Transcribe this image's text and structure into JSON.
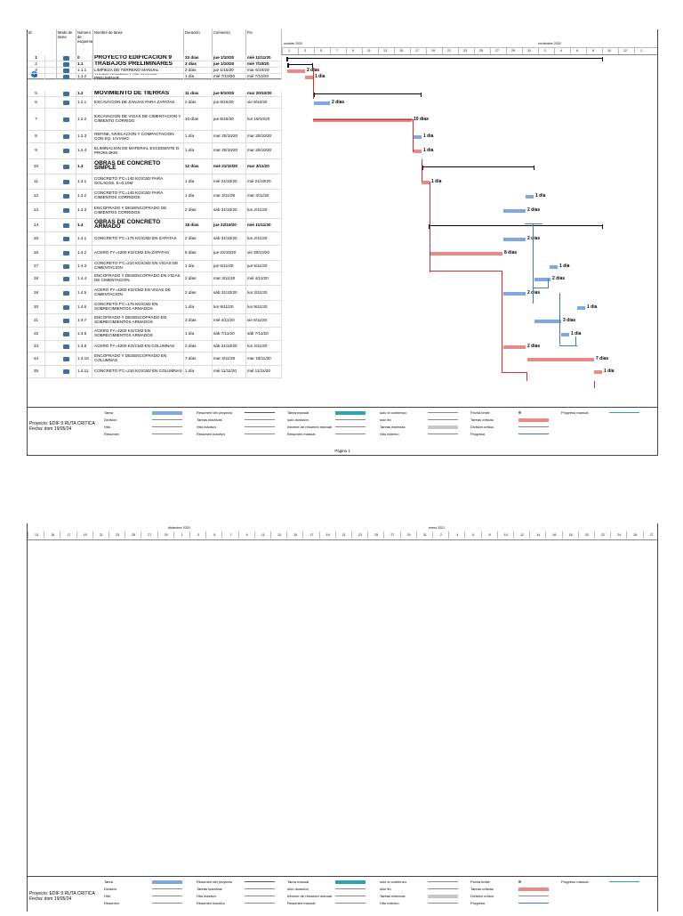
{
  "headers": {
    "id": "Id",
    "mode": "Modo de tarea",
    "num": "Número de esquema",
    "name": "Nombre de tarea",
    "dur": "Duración",
    "start": "Comienzo",
    "end": "Fin"
  },
  "timeline1": {
    "month1": "octubre 2020",
    "month2": "noviembre 2020",
    "days": [
      "1",
      "3",
      "5",
      "7",
      "9",
      "11",
      "13",
      "15",
      "17",
      "19",
      "21",
      "23",
      "25",
      "27",
      "29",
      "31",
      "2",
      "4",
      "6",
      "8",
      "10",
      "12",
      "1"
    ]
  },
  "timeline2": {
    "month1": "diciembre 2020",
    "month2": "enero 2021",
    "days": [
      "13",
      "15",
      "17",
      "19",
      "21",
      "23",
      "25",
      "27",
      "29",
      "1",
      "3",
      "5",
      "7",
      "9",
      "11",
      "13",
      "15",
      "17",
      "19",
      "21",
      "23",
      "25",
      "27",
      "29",
      "31",
      "2",
      "4",
      "6",
      "8",
      "10",
      "12",
      "14",
      "16",
      "18",
      "20",
      "22",
      "24",
      "26",
      "27"
    ]
  },
  "rows": [
    {
      "id": "1",
      "num": "0",
      "name": "PROYECTO EDIFICACION 9",
      "dur": "33 días",
      "start": "jue 1/10/20",
      "end": "mié 11/11/20",
      "kind": "proj"
    },
    {
      "id": "2",
      "num": "1.1",
      "name": "TRABAJOS PRELIMINARES",
      "dur": "3 días",
      "start": "jue 1/10/20",
      "end": "mié 7/10/20",
      "kind": "sum"
    },
    {
      "id": "3",
      "num": "1.1.1",
      "name": "LIMPIEZA DE TERRENO MANUAL",
      "dur": "2 días",
      "start": "jue 1/10/20",
      "end": "mar 6/10/20",
      "kind": "task"
    },
    {
      "id": "4",
      "num": "1.1.2",
      "name": "TRAZO, NIVELES Y REPLANTEO PRELIMINAR",
      "dur": "1 día",
      "start": "mié 7/10/20",
      "end": "mié 7/10/20",
      "kind": "task"
    },
    {
      "id": "5",
      "num": "1.2",
      "name": "MOVIMIENTO DE TIERRAS",
      "dur": "11 días",
      "start": "jue 8/10/20",
      "end": "mar 20/10/20",
      "kind": "sum"
    },
    {
      "id": "6",
      "num": "1.2.1",
      "name": "EXCAVACION DE ZANJAS PARA ZAPATAS",
      "dur": "2 días",
      "start": "jue 8/10/20",
      "end": "vie 9/10/20",
      "kind": "task"
    },
    {
      "id": "7",
      "num": "1.2.2",
      "name": "EXCAVACION DE VIGAS DE CIMENTACION Y CIMIENTO CORRIDO",
      "dur": "10 días",
      "start": "jue 8/10/20",
      "end": "lun 19/10/20",
      "kind": "task"
    },
    {
      "id": "8",
      "num": "1.2.3",
      "name": "REFINE, NIVELACION Y COMPACTACION CON EQ. LIVIANO",
      "dur": "1 día",
      "start": "mar 20/10/20",
      "end": "mar 20/10/20",
      "kind": "task"
    },
    {
      "id": "9",
      "num": "1.2.4",
      "name": "ELIMINACION DE MATERIAL EXCEDENTE D. PROM=5KM",
      "dur": "1 día",
      "start": "mar 20/10/20",
      "end": "mar 20/10/20",
      "kind": "task"
    },
    {
      "id": "10",
      "num": "1.3",
      "name": "OBRAS DE CONCRETO SIMPLE",
      "dur": "12 días",
      "start": "mié 21/10/20",
      "end": "mar 3/11/20",
      "kind": "sum"
    },
    {
      "id": "11",
      "num": "1.3.1",
      "name": "CONCRETO F'C=140 KG/CM2 PARA SOLADOS, E=0.10M",
      "dur": "1 día",
      "start": "mié 21/10/20",
      "end": "mié 21/10/20",
      "kind": "task"
    },
    {
      "id": "12",
      "num": "1.3.2",
      "name": "CONCRETO F'C=140 KG/CM2 PARA CIMIENTOS CORRIDOS",
      "dur": "1 día",
      "start": "mar 3/11/20",
      "end": "mar 3/11/20",
      "kind": "task"
    },
    {
      "id": "13",
      "num": "1.3.3",
      "name": "ENCOFRADO Y DESENCOFRADO DE CIMIENTOS CORRIDOS",
      "dur": "2 días",
      "start": "sáb 31/10/20",
      "end": "lun 2/11/20",
      "kind": "task"
    },
    {
      "id": "14",
      "num": "1.4",
      "name": "OBRAS DE CONCRETO ARMADO",
      "dur": "18 días",
      "start": "jue 22/10/20",
      "end": "mié 11/11/20",
      "kind": "sum"
    },
    {
      "id": "15",
      "num": "1.4.1",
      "name": "CONCRETO F'C=175 KG/CM2 EN ZAPATAS",
      "dur": "2 días",
      "start": "sáb 31/10/20",
      "end": "lun 2/11/20",
      "kind": "task"
    },
    {
      "id": "16",
      "num": "1.4.2",
      "name": "ACERO FY=4200 KG/CM2 EN ZAPATAS",
      "dur": "8 días",
      "start": "jue 22/10/20",
      "end": "vie 30/10/20",
      "kind": "task"
    },
    {
      "id": "17",
      "num": "1.4.3",
      "name": "CONCRETO F'C=210 KG/CM2 EN VIGAS DE CIMENTACION",
      "dur": "1 día",
      "start": "jue 5/11/20",
      "end": "jue 5/11/20",
      "kind": "task"
    },
    {
      "id": "18",
      "num": "1.4.4",
      "name": "ENCOFRADO Y DESENCOFRADO EN VIGAS DE CIMENTACION",
      "dur": "2 días",
      "start": "mar 3/11/20",
      "end": "mié 4/11/20",
      "kind": "task"
    },
    {
      "id": "19",
      "num": "1.4.5",
      "name": "ACERO FY=4200 KG/CM2 EN VIGAS DE CIMENTACION",
      "dur": "2 días",
      "start": "sáb 31/10/20",
      "end": "lun 2/11/20",
      "kind": "task"
    },
    {
      "id": "20",
      "num": "1.4.6",
      "name": "CONCRETO F'C=175 KG/CM2 EN SOBRECIMIENTOS ARMADOS",
      "dur": "1 día",
      "start": "lun 9/11/20",
      "end": "lun 9/11/20",
      "kind": "task"
    },
    {
      "id": "21",
      "num": "1.4.7",
      "name": "ENCOFRADO Y DESENCOFRADO EN SOBRECIMIENTOS ARMADOS",
      "dur": "3 días",
      "start": "mié 4/11/20",
      "end": "vie 6/11/20",
      "kind": "task"
    },
    {
      "id": "22",
      "num": "1.4.8",
      "name": "ACERO FY=4200 KG/CM2 EN SOBRECIMIENTOS ARMADOS",
      "dur": "1 día",
      "start": "sáb 7/11/20",
      "end": "sáb 7/11/20",
      "kind": "task"
    },
    {
      "id": "23",
      "num": "1.4.9",
      "name": "ACERO FY=4200 KG/CM2 EN COLUMNAS",
      "dur": "2 días",
      "start": "sáb 31/10/20",
      "end": "lun 2/11/20",
      "kind": "task"
    },
    {
      "id": "24",
      "num": "1.4.10",
      "name": "ENCOFRADO Y DESENCOFRADO EN COLUMNAS",
      "dur": "7 días",
      "start": "mar 3/11/20",
      "end": "mar 10/11/20",
      "kind": "task"
    },
    {
      "id": "25",
      "num": "1.4.11",
      "name": "CONCRETO F'C=210 KG/CM2 EN COLUMNAS",
      "dur": "1 día",
      "start": "mié 11/11/20",
      "end": "mié 11/11/20",
      "kind": "task"
    }
  ],
  "bars": [
    {
      "row": 2,
      "label": "2 días",
      "color": "red"
    },
    {
      "row": 3,
      "label": "1 día",
      "color": "red"
    },
    {
      "row": 5,
      "label": "2 días",
      "color": "blue"
    },
    {
      "row": 6,
      "label": "10 días",
      "color": "red"
    },
    {
      "row": 7,
      "label": "1 día",
      "color": "blue"
    },
    {
      "row": 8,
      "label": "1 día",
      "color": "red"
    },
    {
      "row": 10,
      "label": "1 día",
      "color": "red"
    },
    {
      "row": 11,
      "label": "1 día",
      "color": "blue"
    },
    {
      "row": 12,
      "label": "2 días",
      "color": "blue"
    },
    {
      "row": 14,
      "label": "2 días",
      "color": "blue"
    },
    {
      "row": 15,
      "label": "8 días",
      "color": "red"
    },
    {
      "row": 16,
      "label": "1 día",
      "color": "blue"
    },
    {
      "row": 17,
      "label": "2 días",
      "color": "blue"
    },
    {
      "row": 18,
      "label": "2 días",
      "color": "blue"
    },
    {
      "row": 19,
      "label": "1 día",
      "color": "blue"
    },
    {
      "row": 20,
      "label": "3 días",
      "color": "blue"
    },
    {
      "row": 21,
      "label": "1 día",
      "color": "blue"
    },
    {
      "row": 22,
      "label": "2 días",
      "color": "red"
    },
    {
      "row": 23,
      "label": "7 días",
      "color": "red"
    },
    {
      "row": 24,
      "label": "1 día",
      "color": "red"
    }
  ],
  "legend": {
    "project": "Proyecto: EDIF 9 RUTA CRITICA",
    "date": "Fecha: dom 19/05/24",
    "items": [
      "Tarea",
      "División",
      "Hito",
      "Resumen",
      "Resumen del proyecto",
      "Tareas inactivas",
      "Hito inactivo",
      "Resumen inactivo",
      "Tarea manual",
      "solo duración",
      "Informe de resumen manual",
      "Resumen manual",
      "solo el comienzo",
      "solo fin",
      "Tareas externas",
      "Hito externo",
      "Fecha límite",
      "Tareas críticas",
      "División crítica",
      "Progreso",
      "Progreso manual"
    ]
  },
  "footer": "Página 1",
  "colors": {
    "critical": "#e98a87",
    "task": "#7ea8e3",
    "teal": "#2aa3b4"
  }
}
